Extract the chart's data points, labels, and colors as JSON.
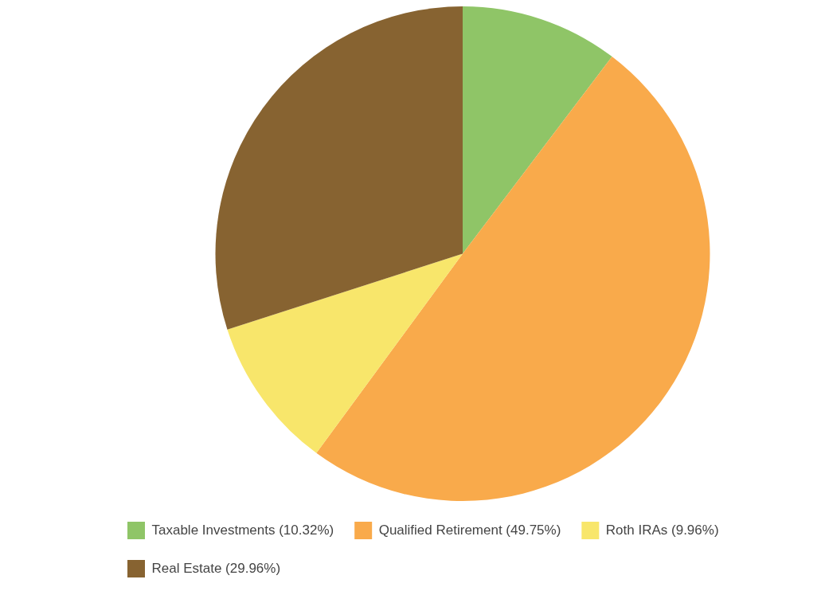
{
  "chart_data": {
    "type": "pie",
    "categories": [
      "Taxable Investments (10.32%)",
      "Qualified Retirement (49.75%)",
      "Roth IRAs (9.96%)",
      "Real Estate (29.96%)"
    ],
    "values": [
      10.32,
      49.75,
      9.96,
      29.96
    ],
    "colors": [
      "#8fc567",
      "#f9aa4b",
      "#f8e66b",
      "#876331"
    ],
    "legend": "bottom left"
  }
}
